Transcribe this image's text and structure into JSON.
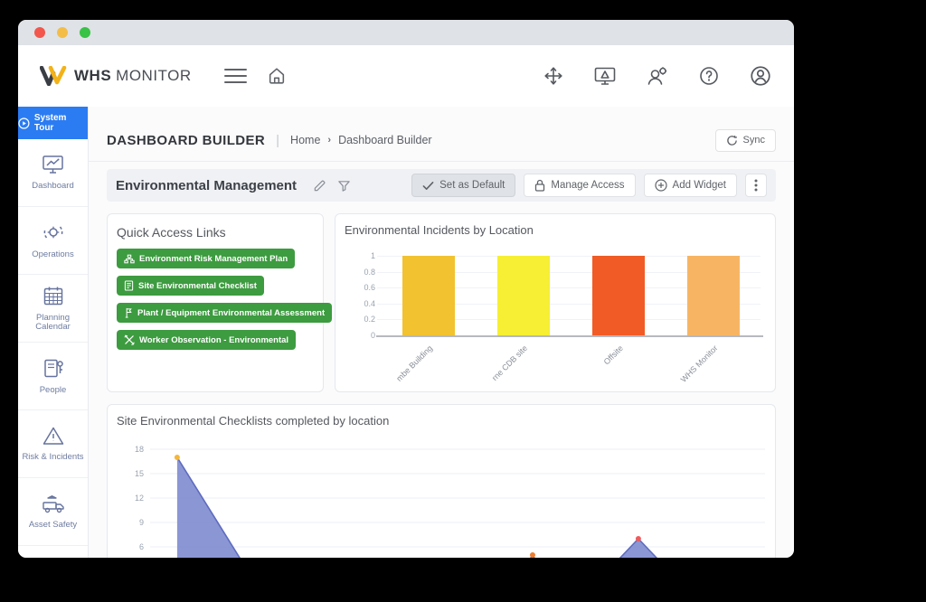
{
  "window": {
    "traffic_lights": [
      "#f2564c",
      "#f4bd47",
      "#38c246"
    ]
  },
  "header": {
    "brand_bold": "WHS",
    "brand_regular": "MONITOR"
  },
  "sidebar": {
    "tour_label": "System Tour",
    "items": [
      {
        "label": "Dashboard"
      },
      {
        "label": "Operations"
      },
      {
        "label": "Planning Calendar"
      },
      {
        "label": "People"
      },
      {
        "label": "Risk & Incidents"
      },
      {
        "label": "Asset Safety"
      }
    ]
  },
  "page": {
    "title": "DASHBOARD BUILDER",
    "breadcrumb_home": "Home",
    "breadcrumb_current": "Dashboard Builder",
    "sync_label": "Sync"
  },
  "toolbar": {
    "dashboard_name": "Environmental Management",
    "set_default_label": "Set as Default",
    "manage_access_label": "Manage Access",
    "add_widget_label": "Add Widget"
  },
  "quick_access": {
    "title": "Quick Access Links",
    "button_color": "#3d9b40",
    "links": [
      "Environment Risk Management Plan",
      "Site Environmental Checklist",
      "Plant / Equipment Environmental Assessment",
      "Worker Observation - Environmental"
    ]
  },
  "chart_data": [
    {
      "type": "bar",
      "title": "Environmental Incidents by Location",
      "categories": [
        "mbe Building",
        "rne CDB site",
        "Offsite",
        "WHS Monitor"
      ],
      "values": [
        1,
        1,
        1,
        1
      ],
      "colors": [
        "#f2c230",
        "#f6ef33",
        "#f15b25",
        "#f7b563"
      ],
      "yticks": [
        1,
        0.8,
        0.6,
        0.4,
        0.2,
        0
      ],
      "ylim": [
        0,
        1
      ],
      "grid": true,
      "note": "category labels truncated by chart clipping; all bars equal 1"
    },
    {
      "type": "area",
      "title": "Site Environmental Checklists completed by location",
      "yticks": [
        18,
        15,
        12,
        9,
        6
      ],
      "ylim": [
        0,
        18
      ],
      "line_color": "#5e6cc0",
      "fill_color": "#8590d2",
      "points": [
        {
          "x": 4.4,
          "y": 17,
          "marker": "#f4b63b"
        },
        {
          "x": 18.4,
          "y": 0
        },
        {
          "x": 58.1,
          "y": 0
        },
        {
          "x": 62.2,
          "y": 5,
          "marker": "#ed7d2f"
        },
        {
          "x": 66.2,
          "y": 0
        },
        {
          "x": 70.6,
          "y": 0
        },
        {
          "x": 79.4,
          "y": 7,
          "marker": "#ef5b5b"
        },
        {
          "x": 88.2,
          "y": 0
        },
        {
          "x": 100,
          "y": 0
        }
      ],
      "note": "x axis labels cut off by window edge; chart clipped at bottom around value 4.7"
    }
  ]
}
